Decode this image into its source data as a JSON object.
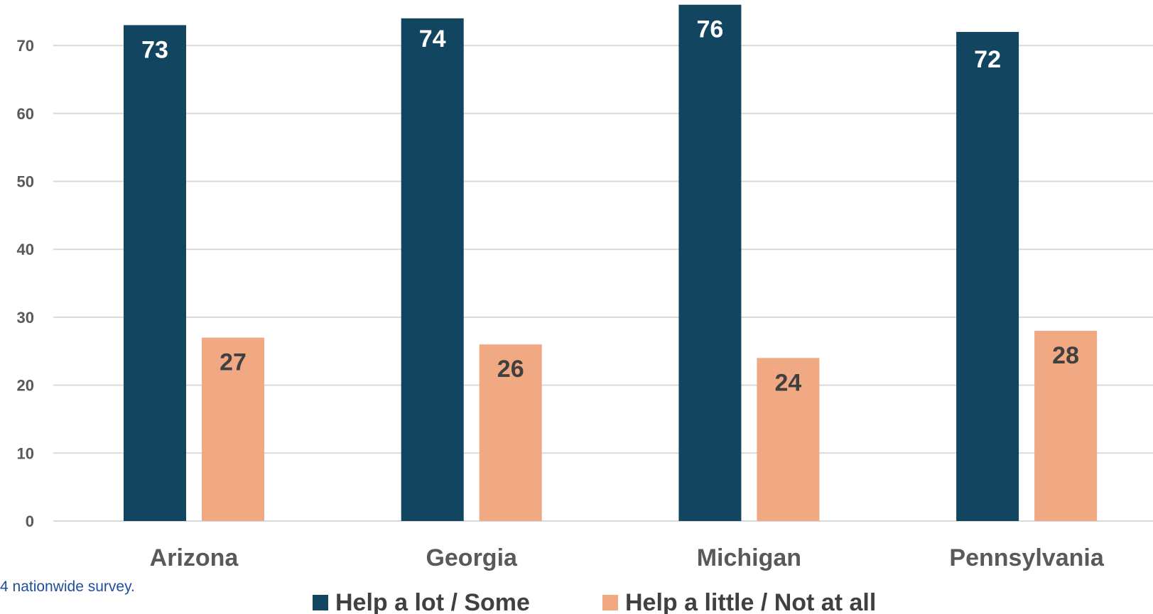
{
  "chart_data": {
    "type": "bar",
    "title": "",
    "xlabel": "",
    "ylabel": "",
    "categories": [
      "Arizona",
      "Georgia",
      "Michigan",
      "Pennsylvania"
    ],
    "series": [
      {
        "name": "Help a lot / Some",
        "values": [
          73,
          74,
          76,
          72
        ],
        "color": "#124660",
        "label_color": "#ffffff"
      },
      {
        "name": "Help a little / Not at all",
        "values": [
          27,
          26,
          24,
          28
        ],
        "color": "#f1a984",
        "label_color": "#404040"
      }
    ],
    "ylim": [
      0,
      76
    ],
    "yticks": [
      0,
      10,
      20,
      30,
      40,
      50,
      60,
      70
    ],
    "grid": true,
    "legend_position": "bottom",
    "colors": {
      "gridline": "#d9d9d9",
      "tick_text": "#595959",
      "footnote_text": "#1f4e9c"
    }
  },
  "footnote": "4 nationwide survey."
}
